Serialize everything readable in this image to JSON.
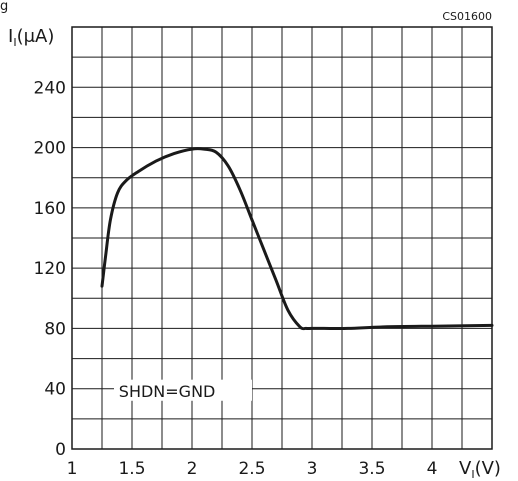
{
  "header": {
    "clipped_text": "g"
  },
  "chart_data": {
    "type": "line",
    "code": "CS01600",
    "xlabel_main": "V",
    "xlabel_sub": "I",
    "xlabel_unit": "(V)",
    "ylabel_main": "I",
    "ylabel_sub": "I",
    "ylabel_unit": "(μA)",
    "annotation": "SHDN=GND",
    "xlim": [
      1,
      4.5
    ],
    "ylim": [
      0,
      280
    ],
    "x_ticks": [
      {
        "value": 1,
        "label": "1"
      },
      {
        "value": 1.5,
        "label": "1.5"
      },
      {
        "value": 2,
        "label": "2"
      },
      {
        "value": 2.5,
        "label": "2.5"
      },
      {
        "value": 3,
        "label": "3"
      },
      {
        "value": 3.5,
        "label": "3.5"
      },
      {
        "value": 4,
        "label": "4"
      }
    ],
    "y_ticks": [
      {
        "value": 0,
        "label": "0"
      },
      {
        "value": 40,
        "label": "40"
      },
      {
        "value": 80,
        "label": "80"
      },
      {
        "value": 120,
        "label": "120"
      },
      {
        "value": 160,
        "label": "160"
      },
      {
        "value": 200,
        "label": "200"
      },
      {
        "value": 240,
        "label": "240"
      }
    ],
    "grid": true,
    "grid_step_x": 0.25,
    "grid_step_y": 20,
    "series": [
      {
        "x": [
          1.25,
          1.28,
          1.32,
          1.38,
          1.45,
          1.55,
          1.7,
          1.85,
          2.0,
          2.1,
          2.2,
          2.3,
          2.4,
          2.5,
          2.6,
          2.7,
          2.8,
          2.9,
          2.95,
          3.0,
          3.1,
          3.3,
          3.6,
          4.0,
          4.5
        ],
        "y": [
          108,
          128,
          152,
          170,
          178,
          184,
          191,
          196,
          199,
          199,
          197,
          188,
          172,
          152,
          132,
          112,
          92,
          81,
          80,
          80,
          80,
          80,
          81,
          81.5,
          82
        ]
      }
    ]
  }
}
